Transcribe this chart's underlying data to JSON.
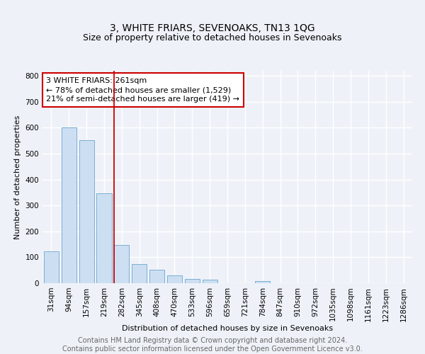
{
  "title": "3, WHITE FRIARS, SEVENOAKS, TN13 1QG",
  "subtitle": "Size of property relative to detached houses in Sevenoaks",
  "xlabel": "Distribution of detached houses by size in Sevenoaks",
  "ylabel": "Number of detached properties",
  "bar_labels": [
    "31sqm",
    "94sqm",
    "157sqm",
    "219sqm",
    "282sqm",
    "345sqm",
    "408sqm",
    "470sqm",
    "533sqm",
    "596sqm",
    "659sqm",
    "721sqm",
    "784sqm",
    "847sqm",
    "910sqm",
    "972sqm",
    "1035sqm",
    "1098sqm",
    "1161sqm",
    "1223sqm",
    "1286sqm"
  ],
  "bar_values": [
    122,
    600,
    553,
    347,
    147,
    74,
    51,
    30,
    16,
    15,
    0,
    0,
    9,
    0,
    0,
    0,
    0,
    0,
    0,
    0,
    0
  ],
  "bar_color": "#ccdff2",
  "bar_edge_color": "#7aadd4",
  "vline_color": "#cc0000",
  "annotation_line1": "3 WHITE FRIARS: 261sqm",
  "annotation_line2": "← 78% of detached houses are smaller (1,529)",
  "annotation_line3": "21% of semi-detached houses are larger (419) →",
  "annotation_box_color": "white",
  "annotation_box_edge": "#cc0000",
  "ylim": [
    0,
    820
  ],
  "yticks": [
    0,
    100,
    200,
    300,
    400,
    500,
    600,
    700,
    800
  ],
  "background_color": "#eef2f8",
  "grid_color": "white",
  "footer_text": "Contains HM Land Registry data © Crown copyright and database right 2024.\nContains public sector information licensed under the Open Government Licence v3.0.",
  "title_fontsize": 10,
  "subtitle_fontsize": 9,
  "annotation_fontsize": 8,
  "footer_fontsize": 7,
  "ylabel_fontsize": 8,
  "xlabel_fontsize": 8,
  "tick_fontsize": 7.5
}
